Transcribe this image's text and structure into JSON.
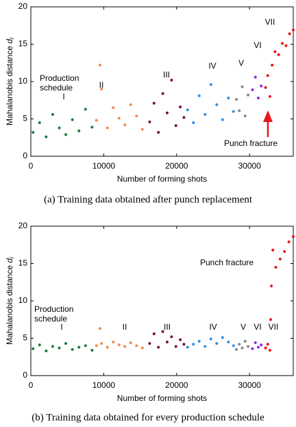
{
  "chart_data": [
    {
      "type": "scatter",
      "x_label": "Number of forming shots",
      "y_label": "Mahalanobis distance",
      "y_label_symbol": "d",
      "y_label_subscript": "i",
      "caption": "(a) Training data obtained after punch replacement",
      "xlim": [
        0,
        36000
      ],
      "xticks": [
        0,
        10000,
        20000,
        30000
      ],
      "ylim": [
        0,
        20
      ],
      "yticks": [
        0,
        5,
        10,
        15,
        20
      ],
      "annotations": [
        "Production",
        "schedule",
        "I",
        "II",
        "III",
        "IV",
        "V",
        "VI",
        "VII",
        "Punch fracture"
      ],
      "series": [
        {
          "color": "#1a7a40",
          "x": [
            300,
            1200,
            2100,
            3000,
            3900,
            4800,
            5700,
            6600,
            7500,
            8400
          ],
          "values": [
            3.2,
            4.5,
            2.6,
            5.6,
            3.8,
            2.9,
            4.9,
            3.4,
            6.3,
            3.9
          ]
        },
        {
          "color": "#f5894a",
          "x": [
            9000,
            9500,
            9700,
            10500,
            11300,
            12100,
            12900,
            13700,
            14500,
            15300
          ],
          "values": [
            4.8,
            12.2,
            9.0,
            3.8,
            6.5,
            5.1,
            4.2,
            6.9,
            5.4,
            3.6
          ]
        },
        {
          "color": "#7a0d3a",
          "x": [
            16300,
            16900,
            17500,
            18100,
            18700,
            19300,
            19900,
            20500,
            21000
          ],
          "values": [
            4.6,
            7.1,
            3.2,
            8.4,
            5.8,
            10.2,
            4.1,
            6.6,
            5.2
          ]
        },
        {
          "color": "#2e8fea",
          "x": [
            21500,
            22300,
            23100,
            23900,
            24700,
            25500,
            26300,
            27100,
            27800
          ],
          "values": [
            6.2,
            4.5,
            8.1,
            5.6,
            9.6,
            6.9,
            4.9,
            7.8,
            6.0
          ]
        },
        {
          "color": "#888888",
          "x": [
            28200,
            28600,
            29000,
            29400,
            29800
          ],
          "values": [
            7.6,
            6.1,
            9.3,
            5.4,
            8.2
          ]
        },
        {
          "color": "#8a2be2",
          "x": [
            30400,
            30800,
            31200,
            31600
          ],
          "values": [
            8.9,
            10.6,
            7.8,
            9.4
          ]
        },
        {
          "color": "#e8161b",
          "x": [
            32200,
            32500,
            32800,
            33100,
            33500,
            34000,
            34500,
            35000,
            35500,
            36000
          ],
          "values": [
            9.2,
            10.8,
            8.0,
            12.2,
            14.0,
            13.6,
            15.1,
            14.8,
            16.4,
            16.9
          ]
        }
      ]
    },
    {
      "type": "scatter",
      "x_label": "Number of forming shots",
      "y_label": "Mahalanobis distance",
      "y_label_symbol": "d",
      "y_label_subscript": "i",
      "caption": "(b) Training data obtained for every production schedule",
      "xlim": [
        0,
        36000
      ],
      "xticks": [
        0,
        10000,
        20000,
        30000
      ],
      "ylim": [
        0,
        20
      ],
      "yticks": [
        0,
        5,
        10,
        15,
        20
      ],
      "annotations": [
        "Production",
        "schedule",
        "I",
        "II",
        "III",
        "IV",
        "V",
        "VI",
        "VII",
        "Punch fracture"
      ],
      "series": [
        {
          "color": "#1a7a40",
          "x": [
            300,
            1200,
            2100,
            3000,
            3900,
            4800,
            5700,
            6600,
            7500,
            8400
          ],
          "values": [
            3.6,
            4.1,
            3.3,
            3.9,
            3.7,
            4.3,
            3.5,
            3.8,
            4.0,
            3.4
          ]
        },
        {
          "color": "#f5894a",
          "x": [
            9000,
            9500,
            9700,
            10500,
            11300,
            12100,
            12900,
            13700,
            14500,
            15300
          ],
          "values": [
            4.0,
            6.3,
            4.3,
            3.8,
            4.5,
            4.1,
            3.9,
            4.4,
            4.0,
            3.7
          ]
        },
        {
          "color": "#7a0d3a",
          "x": [
            16300,
            16900,
            17500,
            18100,
            18700,
            19300,
            19900,
            20500,
            21000
          ],
          "values": [
            4.3,
            5.6,
            3.8,
            5.9,
            4.5,
            5.2,
            3.9,
            4.8,
            4.2
          ]
        },
        {
          "color": "#2e8fea",
          "x": [
            21500,
            22300,
            23100,
            23900,
            24700,
            25500,
            26300,
            27100,
            27800
          ],
          "values": [
            3.8,
            4.2,
            4.6,
            3.9,
            4.9,
            4.3,
            5.1,
            4.5,
            4.0
          ]
        },
        {
          "color": "#888888",
          "x": [
            28200,
            28600,
            29000,
            29400,
            29800
          ],
          "values": [
            3.5,
            4.2,
            3.7,
            4.6,
            3.9
          ]
        },
        {
          "color": "#8a2be2",
          "x": [
            30400,
            30800,
            31200,
            31600
          ],
          "values": [
            3.6,
            4.4,
            3.8,
            4.1
          ]
        },
        {
          "color": "#e8161b",
          "x": [
            32200,
            32500,
            32800,
            32900,
            33000,
            33200,
            33600,
            34200,
            34800,
            35400,
            36000
          ],
          "values": [
            3.7,
            4.2,
            3.4,
            7.5,
            12.0,
            16.8,
            14.5,
            15.6,
            16.6,
            17.9,
            18.6
          ]
        }
      ]
    }
  ]
}
